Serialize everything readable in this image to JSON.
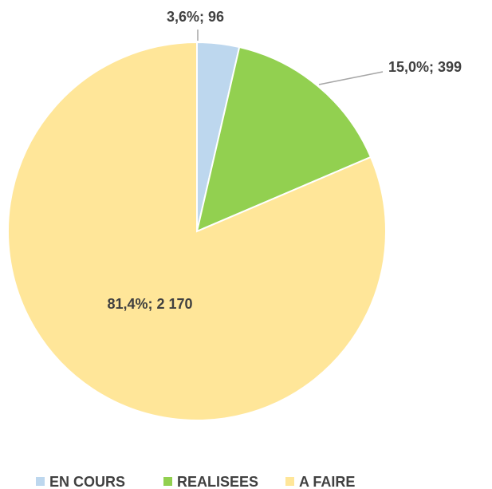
{
  "chart_data": {
    "type": "pie",
    "categories": [
      "EN COURS",
      "REALISEES",
      "A FAIRE"
    ],
    "values": [
      96,
      399,
      2170
    ],
    "value_labels": [
      "3,6%;  96",
      "15,0%;  399",
      "81,4%;  2 170"
    ],
    "colors": [
      "#bdd7ee",
      "#92d050",
      "#ffe699"
    ],
    "legend": "bottom"
  }
}
